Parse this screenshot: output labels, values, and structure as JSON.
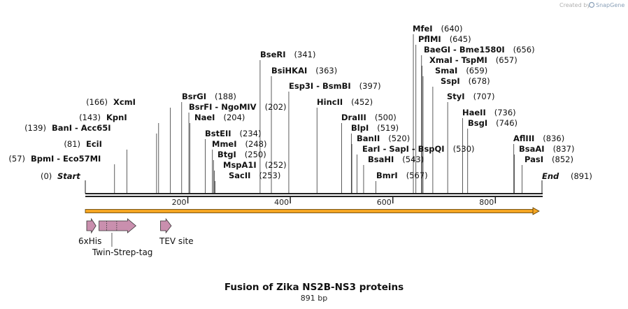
{
  "brand": {
    "created_by": "Created by",
    "name": "SnapGene"
  },
  "map": {
    "title": "Fusion of Zika NS2B-NS3 proteins",
    "length_label": "891 bp",
    "length": 891,
    "ticks": [
      200,
      400,
      600,
      800
    ],
    "start_label": "Start",
    "start_pos": "(0)",
    "end_label": "End",
    "end_pos": "(891)"
  },
  "sites": [
    {
      "name": "BpmI  -  Eco57MI",
      "pos": 57
    },
    {
      "name": "EciI",
      "pos": 81
    },
    {
      "name": "BanI  -  Acc65I",
      "pos": 139
    },
    {
      "name": "KpnI",
      "pos": 143
    },
    {
      "name": "XcmI",
      "pos": 166
    },
    {
      "name": "BsrGI",
      "pos": 188
    },
    {
      "name": "BsrFI  -  NgoMIV",
      "pos": 202
    },
    {
      "name": "NaeI",
      "pos": 204
    },
    {
      "name": "BstEII",
      "pos": 234
    },
    {
      "name": "MmeI",
      "pos": 248
    },
    {
      "name": "BtgI",
      "pos": 250
    },
    {
      "name": "MspA1I",
      "pos": 252
    },
    {
      "name": "SacII",
      "pos": 253
    },
    {
      "name": "BseRI",
      "pos": 341
    },
    {
      "name": "BsiHKAI",
      "pos": 363
    },
    {
      "name": "Esp3I  -  BsmBI",
      "pos": 397
    },
    {
      "name": "HincII",
      "pos": 452
    },
    {
      "name": "DraIII",
      "pos": 500
    },
    {
      "name": "BlpI",
      "pos": 519
    },
    {
      "name": "BanII",
      "pos": 520
    },
    {
      "name": "EarI  -  SapI  -  BspQI",
      "pos": 530
    },
    {
      "name": "BsaHI",
      "pos": 543
    },
    {
      "name": "BmrI",
      "pos": 567
    },
    {
      "name": "MfeI",
      "pos": 640
    },
    {
      "name": "PflMI",
      "pos": 645
    },
    {
      "name": "BaeGI  -  Bme1580I",
      "pos": 656
    },
    {
      "name": "XmaI  -  TspMI",
      "pos": 657
    },
    {
      "name": "SmaI",
      "pos": 659
    },
    {
      "name": "SspI",
      "pos": 678
    },
    {
      "name": "StyI",
      "pos": 707
    },
    {
      "name": "HaeII",
      "pos": 736
    },
    {
      "name": "BsgI",
      "pos": 746
    },
    {
      "name": "AflIII",
      "pos": 836
    },
    {
      "name": "BsaAI",
      "pos": 837
    },
    {
      "name": "PasI",
      "pos": 852
    }
  ],
  "features": [
    {
      "name": "6xHis",
      "start": 0,
      "end": 18,
      "color": "#c98fae"
    },
    {
      "name": "Twin-Strep-tag",
      "start": 24,
      "end": 96,
      "color": "#c98fae"
    },
    {
      "name": "TEV site",
      "start": 144,
      "end": 165,
      "color": "#c98fae"
    }
  ],
  "colors": {
    "orf": "#f5a623",
    "backbone": "#222222"
  }
}
